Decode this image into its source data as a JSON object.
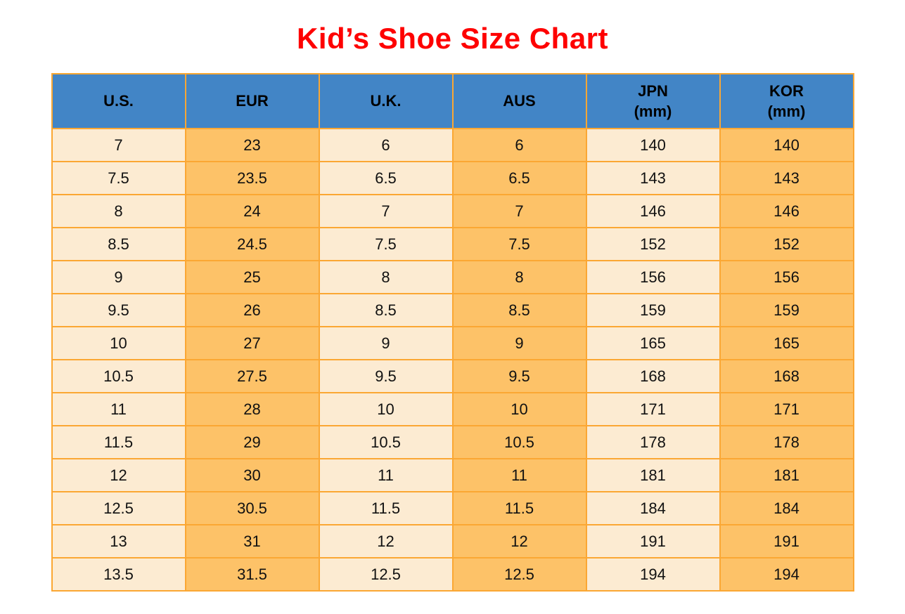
{
  "title": {
    "text": "Kid’s Shoe Size Chart"
  },
  "table": {
    "columns": [
      {
        "label": "U.S.",
        "sub": ""
      },
      {
        "label": "EUR",
        "sub": ""
      },
      {
        "label": "U.K.",
        "sub": ""
      },
      {
        "label": "AUS",
        "sub": ""
      },
      {
        "label": "JPN",
        "sub": "(mm)"
      },
      {
        "label": "KOR",
        "sub": "(mm)"
      }
    ],
    "column_styles": [
      "light",
      "orange",
      "light",
      "orange",
      "light",
      "orange"
    ],
    "colors": {
      "title_red": "#FE0000",
      "header_bg": "#4285C6",
      "header_text": "#000000",
      "border": "#FBA733",
      "col_light": "#FCEBD2",
      "col_orange": "#FDC268",
      "cell_text": "#111111",
      "page_bg": "#FFFFFF"
    }
  },
  "chart_data": {
    "type": "table",
    "title": "Kid’s Shoe Size Chart",
    "columns": [
      "U.S.",
      "EUR",
      "U.K.",
      "AUS",
      "JPN (mm)",
      "KOR (mm)"
    ],
    "rows": [
      [
        "7",
        "23",
        "6",
        "6",
        "140",
        "140"
      ],
      [
        "7.5",
        "23.5",
        "6.5",
        "6.5",
        "143",
        "143"
      ],
      [
        "8",
        "24",
        "7",
        "7",
        "146",
        "146"
      ],
      [
        "8.5",
        "24.5",
        "7.5",
        "7.5",
        "152",
        "152"
      ],
      [
        "9",
        "25",
        "8",
        "8",
        "156",
        "156"
      ],
      [
        "9.5",
        "26",
        "8.5",
        "8.5",
        "159",
        "159"
      ],
      [
        "10",
        "27",
        "9",
        "9",
        "165",
        "165"
      ],
      [
        "10.5",
        "27.5",
        "9.5",
        "9.5",
        "168",
        "168"
      ],
      [
        "11",
        "28",
        "10",
        "10",
        "171",
        "171"
      ],
      [
        "11.5",
        "29",
        "10.5",
        "10.5",
        "178",
        "178"
      ],
      [
        "12",
        "30",
        "11",
        "11",
        "181",
        "181"
      ],
      [
        "12.5",
        "30.5",
        "11.5",
        "11.5",
        "184",
        "184"
      ],
      [
        "13",
        "31",
        "12",
        "12",
        "191",
        "191"
      ],
      [
        "13.5",
        "31.5",
        "12.5",
        "12.5",
        "194",
        "194"
      ]
    ]
  }
}
